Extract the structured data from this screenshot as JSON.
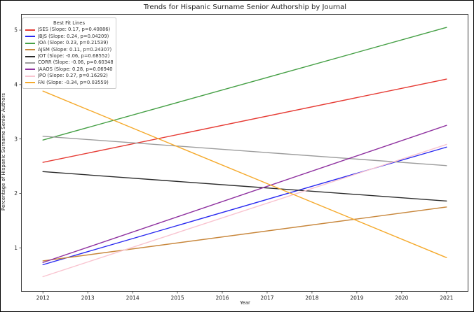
{
  "figure": {
    "title": "Trends for Hispanic Surname Senior Authorship by Journal",
    "xlabel": "Year",
    "ylabel": "Percentage of Hispanic Surname Senior Authors"
  },
  "legend": {
    "title": "Best Fit Lines",
    "position": "upper left"
  },
  "chart_data": {
    "type": "line",
    "title": "Trends for Hispanic Surname Senior Authorship by Journal",
    "xlabel": "Year",
    "ylabel": "Percentage of Hispanic Surname Senior Authors",
    "x": [
      2012,
      2021
    ],
    "x_ticks": [
      2012,
      2013,
      2014,
      2015,
      2016,
      2017,
      2018,
      2019,
      2020,
      2021
    ],
    "y_ticks": [
      1,
      2,
      3,
      4,
      5
    ],
    "xlim": [
      2011.52,
      2021.48
    ],
    "ylim": [
      0.2,
      5.29
    ],
    "grid": false,
    "legend_title": "Best Fit Lines",
    "legend_position": "upper left",
    "series": [
      {
        "name": "JSES",
        "label": "JSES (Slope: 0.17, p=0.40886)",
        "slope": 0.17,
        "p": 0.40886,
        "color": "#e63c35",
        "values": [
          2.57,
          4.1
        ]
      },
      {
        "name": "JBJS",
        "label": "JBJS (Slope: 0.24, p=0.04209)",
        "slope": 0.24,
        "p": 0.04209,
        "color": "#2929f0",
        "values": [
          0.69,
          2.85
        ]
      },
      {
        "name": "JOA",
        "label": "JOA (Slope: 0.23, p=0.21539)",
        "slope": 0.23,
        "p": 0.21539,
        "color": "#46a046",
        "values": [
          2.98,
          5.05
        ]
      },
      {
        "name": "AJSM",
        "label": "AJSM (Slope: 0.11, p=0.24307)",
        "slope": 0.11,
        "p": 0.24307,
        "color": "#c8873c",
        "values": [
          0.76,
          1.75
        ]
      },
      {
        "name": "JOT",
        "label": "JOT (Slope: -0.06, p=0.68552)",
        "slope": -0.06,
        "p": 0.68552,
        "color": "#2b2b2b",
        "values": [
          2.4,
          1.86
        ]
      },
      {
        "name": "CORR",
        "label": "CORR (Slope: -0.06, p=0.60348)",
        "slope": -0.06,
        "p": 0.60348,
        "color": "#9c9c9c",
        "values": [
          3.05,
          2.51
        ]
      },
      {
        "name": "JAAOS",
        "label": "JAAOS (Slope: 0.28, p=0.06940)",
        "slope": 0.28,
        "p": 0.0694,
        "color": "#8f32a0",
        "values": [
          0.73,
          3.25
        ]
      },
      {
        "name": "JPO",
        "label": "JPO (Slope: 0.27, p=0.16292)",
        "slope": 0.27,
        "p": 0.16292,
        "color": "#f9c4d0",
        "values": [
          0.47,
          2.9
        ]
      },
      {
        "name": "FAI",
        "label": "FAI (Slope: -0.34, p=0.03559)",
        "slope": -0.34,
        "p": 0.03559,
        "color": "#f5aa2d",
        "values": [
          3.88,
          0.82
        ]
      }
    ]
  }
}
